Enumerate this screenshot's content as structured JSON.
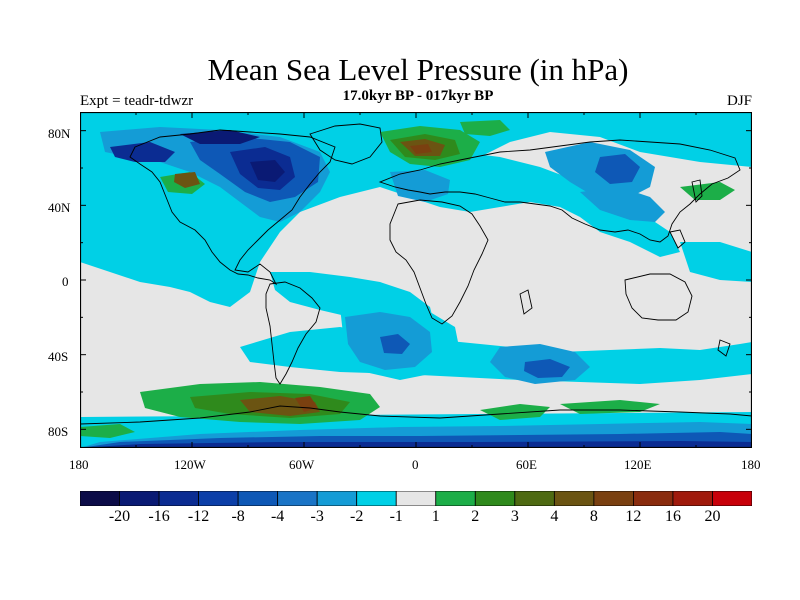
{
  "title": "Mean Sea Level Pressure (in hPa)",
  "subtitle_left": "Expt = teadr-tdwzr",
  "subtitle_center": "17.0kyr BP - 017kyr BP",
  "subtitle_right": "DJF",
  "map": {
    "projection": "cylindrical-equidistant",
    "lon_range": [
      -180,
      180
    ],
    "lat_range": [
      -90,
      90
    ],
    "background_category": "-1 to 1",
    "background_color": "#e6e6e6",
    "lat_tick_labels": [
      "80N",
      "40N",
      "0",
      "40S",
      "80S"
    ],
    "lon_tick_labels": [
      "180",
      "120W",
      "60W",
      "0",
      "60E",
      "120E",
      "180"
    ]
  },
  "colorbar": {
    "colors": [
      "#0c0c48",
      "#0a1a74",
      "#0b2c92",
      "#0c3fa8",
      "#0e58b6",
      "#1a74c6",
      "#149cd6",
      "#00d0e6",
      "#e6e6e6",
      "#1cae48",
      "#2f8a1c",
      "#4e6a12",
      "#6b5412",
      "#7a4010",
      "#8a2c0e",
      "#a01a0c",
      "#c8000a"
    ],
    "labels": [
      "-20",
      "-16",
      "-12",
      "-8",
      "-4",
      "-3",
      "-2",
      "-1",
      "1",
      "2",
      "3",
      "4",
      "8",
      "12",
      "16",
      "20"
    ]
  }
}
